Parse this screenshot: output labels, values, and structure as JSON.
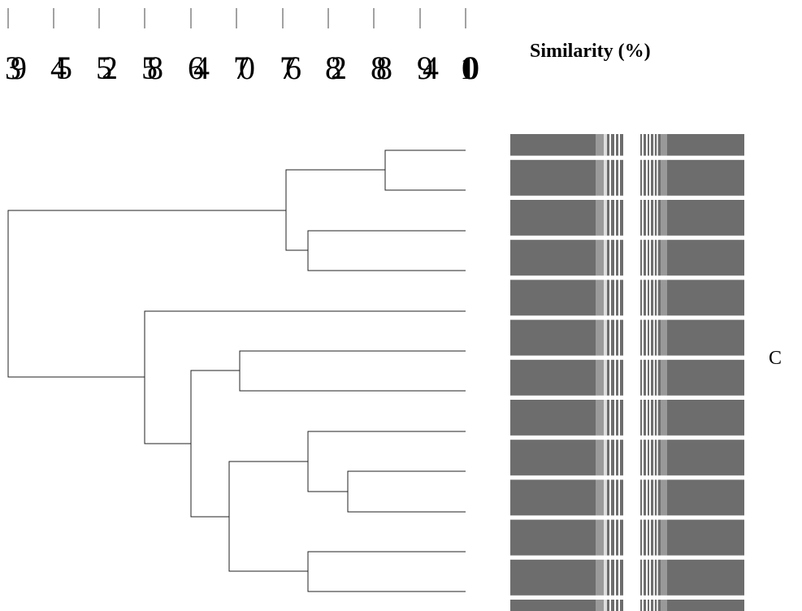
{
  "title": "Similarity (%)",
  "scale": {
    "labels": [
      "39",
      "45",
      "52",
      "58",
      "64",
      "70",
      "76",
      "82",
      "88",
      "94",
      "100"
    ]
  },
  "panel_label": "C"
}
